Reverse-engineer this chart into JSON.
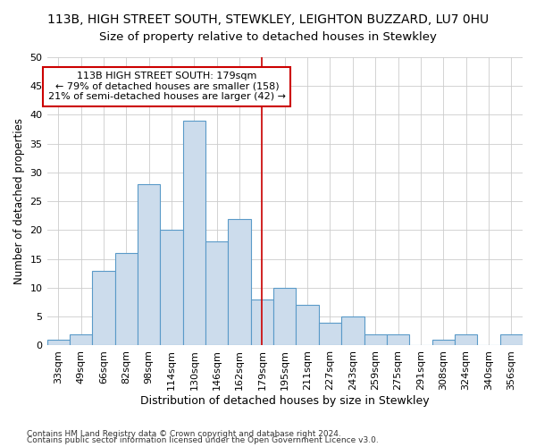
{
  "title": "113B, HIGH STREET SOUTH, STEWKLEY, LEIGHTON BUZZARD, LU7 0HU",
  "subtitle": "Size of property relative to detached houses in Stewkley",
  "xlabel": "Distribution of detached houses by size in Stewkley",
  "ylabel": "Number of detached properties",
  "categories": [
    "33sqm",
    "49sqm",
    "66sqm",
    "82sqm",
    "98sqm",
    "114sqm",
    "130sqm",
    "146sqm",
    "162sqm",
    "179sqm",
    "195sqm",
    "211sqm",
    "227sqm",
    "243sqm",
    "259sqm",
    "275sqm",
    "291sqm",
    "308sqm",
    "324sqm",
    "340sqm",
    "356sqm"
  ],
  "values": [
    1,
    2,
    13,
    16,
    28,
    20,
    39,
    18,
    22,
    8,
    10,
    7,
    4,
    5,
    2,
    2,
    0,
    1,
    2,
    0,
    2
  ],
  "bar_color": "#ccdcec",
  "bar_edge_color": "#5a9ac8",
  "vline_index": 9,
  "annotation_text": "113B HIGH STREET SOUTH: 179sqm\n← 79% of detached houses are smaller (158)\n21% of semi-detached houses are larger (42) →",
  "annotation_box_color": "#ffffff",
  "annotation_box_edge": "#cc0000",
  "vline_color": "#cc0000",
  "ylim": [
    0,
    50
  ],
  "yticks": [
    0,
    5,
    10,
    15,
    20,
    25,
    30,
    35,
    40,
    45,
    50
  ],
  "grid_color": "#cccccc",
  "bg_color": "#ffffff",
  "footer1": "Contains HM Land Registry data © Crown copyright and database right 2024.",
  "footer2": "Contains public sector information licensed under the Open Government Licence v3.0.",
  "title_fontsize": 10,
  "subtitle_fontsize": 9.5,
  "xlabel_fontsize": 9,
  "ylabel_fontsize": 8.5,
  "tick_fontsize": 8,
  "footer_fontsize": 6.5,
  "annot_fontsize": 8
}
